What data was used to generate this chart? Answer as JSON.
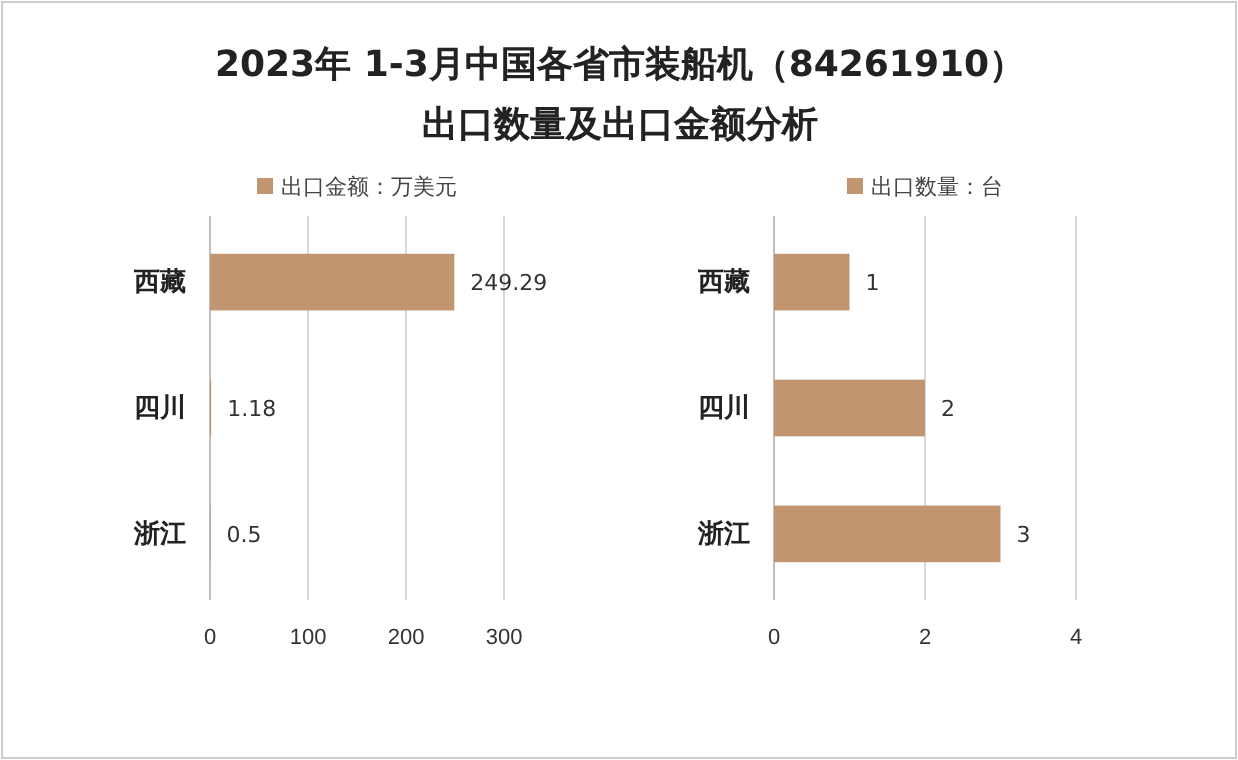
{
  "chart_data": [
    {
      "type": "bar",
      "orientation": "horizontal",
      "title": "2023年 1-3月中国各省市装船机（84261910）出口数量及出口金额分析",
      "categories": [
        "西藏",
        "四川",
        "浙江"
      ],
      "series": [
        {
          "name": "出口金额：万美元",
          "color": "#c09570",
          "values": [
            249.29,
            1.18,
            0.5
          ]
        }
      ],
      "xlim": [
        0,
        300
      ],
      "xticks": [
        0,
        100,
        200,
        300
      ],
      "grid": "x",
      "legend": "top",
      "data_labels": true
    },
    {
      "type": "bar",
      "orientation": "horizontal",
      "categories": [
        "西藏",
        "四川",
        "浙江"
      ],
      "series": [
        {
          "name": "出口数量：台",
          "color": "#c09570",
          "values": [
            1,
            2,
            3
          ]
        }
      ],
      "xlim": [
        0,
        4
      ],
      "xticks": [
        0,
        2,
        4
      ],
      "grid": "x",
      "legend": "top",
      "data_labels": true
    }
  ]
}
